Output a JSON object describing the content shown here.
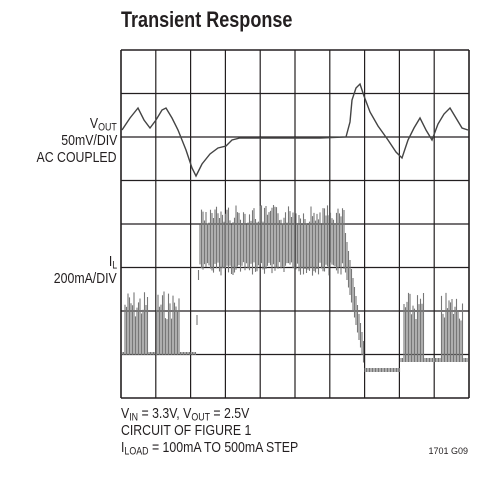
{
  "title": "Transient Response",
  "labels": {
    "vout": [
      {
        "text": "V"
      },
      {
        "text": "OUT",
        "sub": true
      }
    ],
    "vout_scale": "50mV/DIV",
    "vout_coupling": "AC COUPLED",
    "il": [
      {
        "text": "I"
      },
      {
        "text": "L",
        "sub": true
      }
    ],
    "il_scale": "200mA/DIV"
  },
  "notes": [
    [
      {
        "text": "V"
      },
      {
        "text": "IN",
        "sub": true
      },
      {
        "text": " = 3.3V, V"
      },
      {
        "text": "OUT",
        "sub": true
      },
      {
        "text": " = 2.5V"
      }
    ],
    [
      {
        "text": "CIRCUIT OF FIGURE 1"
      }
    ],
    [
      {
        "text": "I"
      },
      {
        "text": "LOAD",
        "sub": true
      },
      {
        "text": " = 100mA TO 500mA STEP"
      }
    ]
  ],
  "figure_id": "1701 G09"
}
